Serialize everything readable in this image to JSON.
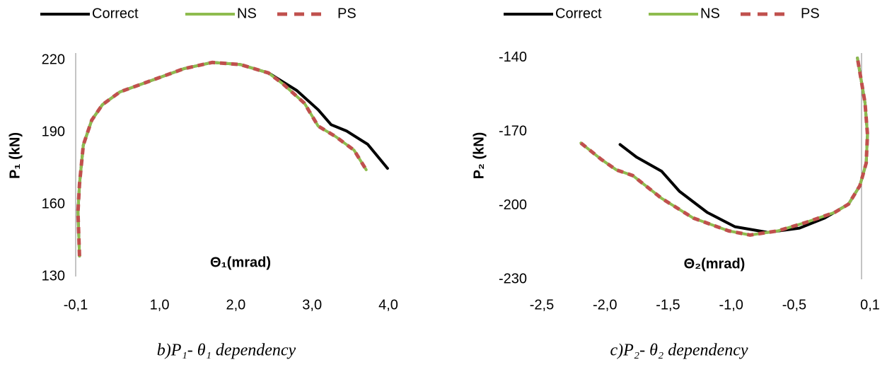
{
  "chart_data": [
    {
      "type": "line",
      "x_label": "Θ₁(mrad)",
      "y_label": "P₁ (kN)",
      "caption": "b)P₁- θ₁ dependency",
      "xlim": [
        -0.1,
        4.0
      ],
      "ylim": [
        130,
        223
      ],
      "xticks": [
        {
          "value": -0.1,
          "label": "-0,1"
        },
        {
          "value": 1.0,
          "label": "1,0"
        },
        {
          "value": 2.0,
          "label": "2,0"
        },
        {
          "value": 3.0,
          "label": "3,0"
        },
        {
          "value": 4.0,
          "label": "4,0"
        }
      ],
      "yticks": [
        130,
        160,
        190,
        220
      ],
      "series": [
        {
          "name": "Correct",
          "color": "#000000",
          "style": "solid",
          "x": [
            -0.05,
            -0.07,
            -0.05,
            0.0,
            0.11,
            0.25,
            0.48,
            0.86,
            1.32,
            1.69,
            2.06,
            2.43,
            2.8,
            3.08,
            3.25,
            3.45,
            3.73,
            3.99
          ],
          "values": [
            138.5,
            156.8,
            168.5,
            184.7,
            195,
            201.5,
            206.8,
            211.2,
            216.5,
            219.1,
            218.2,
            214.7,
            207.4,
            199.4,
            193.2,
            190.6,
            185,
            175
          ]
        },
        {
          "name": "NS",
          "color": "#8fbc4f",
          "style": "solid",
          "x": [
            -0.05,
            -0.07,
            -0.05,
            0.0,
            0.11,
            0.25,
            0.48,
            0.86,
            1.32,
            1.69,
            2.06,
            2.43,
            2.62,
            2.9,
            3.08,
            3.31,
            3.55,
            3.71
          ],
          "values": [
            138.5,
            156.8,
            168.5,
            184.7,
            195,
            201.5,
            206.8,
            211.2,
            216.5,
            219.1,
            218.2,
            214.7,
            210.1,
            202.1,
            192.6,
            188.2,
            182.6,
            174.4
          ]
        },
        {
          "name": "PS",
          "color": "#c0504d",
          "style": "dashed",
          "x": [
            -0.05,
            -0.07,
            -0.05,
            0.0,
            0.11,
            0.25,
            0.48,
            0.86,
            1.32,
            1.69,
            2.06,
            2.43,
            2.62,
            2.9,
            3.08,
            3.31,
            3.55,
            3.71
          ],
          "values": [
            138.5,
            156.8,
            168.5,
            184.7,
            195,
            201.5,
            206.8,
            211.2,
            216.5,
            219.1,
            218.2,
            214.7,
            210.1,
            202.1,
            192.6,
            188.2,
            182.6,
            174.4
          ]
        }
      ]
    },
    {
      "type": "line",
      "x_label": "Θ₂(mrad)",
      "y_label": "P₂ (kN)",
      "caption": "c)P₂- θ₂ dependency",
      "xlim": [
        -2.5,
        0.1
      ],
      "ylim": [
        -230,
        -138
      ],
      "xticks": [
        {
          "value": -2.5,
          "label": "-2,5"
        },
        {
          "value": -2.0,
          "label": "-2,0"
        },
        {
          "value": -1.5,
          "label": "-1,5"
        },
        {
          "value": -1.0,
          "label": "-1,0"
        },
        {
          "value": -0.5,
          "label": "-0,5"
        },
        {
          "value": 0.1,
          "label": "0,1"
        }
      ],
      "yticks": [
        -230,
        -200,
        -170,
        -140
      ],
      "series": [
        {
          "name": "Correct",
          "color": "#000000",
          "style": "solid",
          "x": [
            -1.88,
            -1.75,
            -1.55,
            -1.41,
            -1.19,
            -0.97,
            -0.71,
            -0.46,
            -0.26,
            -0.07,
            0.02,
            0.07,
            0.08,
            0.06,
            0.0
          ],
          "values": [
            -175.2,
            -180.3,
            -186.1,
            -194.2,
            -202.8,
            -208.6,
            -210.9,
            -209.2,
            -205.1,
            -199.4,
            -191.9,
            -182.7,
            -171.1,
            -158.2,
            -140
          ]
        },
        {
          "name": "NS",
          "color": "#8fbc4f",
          "style": "solid",
          "x": [
            -2.19,
            -2.03,
            -1.91,
            -1.78,
            -1.55,
            -1.3,
            -1.02,
            -0.85,
            -0.63,
            -0.41,
            -0.18,
            -0.07,
            0.02,
            0.07,
            0.08,
            0.06,
            0.0
          ],
          "values": [
            -174.6,
            -181.2,
            -185.5,
            -187.8,
            -197.1,
            -205.1,
            -210.3,
            -212,
            -210.3,
            -206.9,
            -202.8,
            -199.4,
            -191.9,
            -182.7,
            -171.1,
            -158.2,
            -140
          ]
        },
        {
          "name": "PS",
          "color": "#c0504d",
          "style": "dashed",
          "x": [
            -2.19,
            -2.03,
            -1.91,
            -1.78,
            -1.55,
            -1.3,
            -1.02,
            -0.85,
            -0.63,
            -0.41,
            -0.18,
            -0.07,
            0.02,
            0.07,
            0.08,
            0.06,
            0.0
          ],
          "values": [
            -174.6,
            -181.2,
            -185.5,
            -187.8,
            -197.1,
            -205.1,
            -210.3,
            -212,
            -210.3,
            -206.9,
            -202.8,
            -199.4,
            -191.9,
            -182.7,
            -171.1,
            -158.2,
            -140
          ]
        }
      ]
    }
  ]
}
